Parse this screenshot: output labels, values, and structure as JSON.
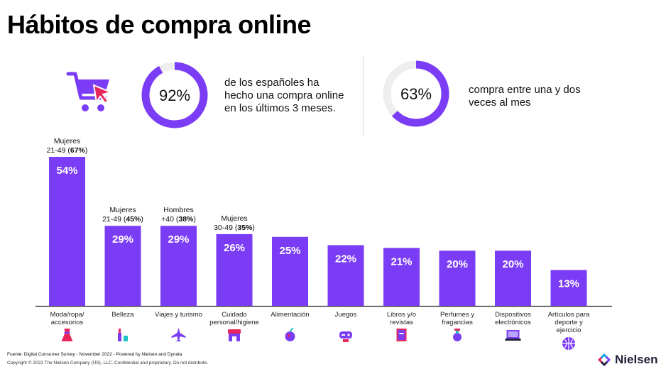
{
  "title": "Hábitos de compra online",
  "stats": [
    {
      "percent": 0.92,
      "label": "92%",
      "line1": "de los españoles ha",
      "line2": "hecho una compra online",
      "line3": "en los últimos 3 meses."
    },
    {
      "percent": 0.63,
      "label": "63%",
      "line1": "compra entre una y dos",
      "line2": "veces al mes",
      "line3": ""
    }
  ],
  "colors": {
    "bar": "#7b3cf5",
    "ring_bg": "#eeeeee",
    "cart_accent": "#e8265e"
  },
  "chart_data": {
    "type": "bar",
    "ylim": [
      0,
      60
    ],
    "categories": [
      {
        "line1": "Moda/ropa/",
        "line2": "accesorios",
        "line3": "",
        "icon": "dress-icon"
      },
      {
        "line1": "Belleza",
        "line2": "",
        "line3": "",
        "icon": "cosmetics-icon"
      },
      {
        "line1": "Viajes y turismo",
        "line2": "",
        "line3": "",
        "icon": "airplane-icon"
      },
      {
        "line1": "Cuidado",
        "line2": "personal/higiene",
        "line3": "",
        "icon": "store-icon"
      },
      {
        "line1": "Alimentación",
        "line2": "",
        "line3": "",
        "icon": "food-icon"
      },
      {
        "line1": "Juegos",
        "line2": "",
        "line3": "",
        "icon": "gamepad-icon"
      },
      {
        "line1": "Libros y/o",
        "line2": "revistas",
        "line3": "",
        "icon": "book-icon"
      },
      {
        "line1": "Perfumes y",
        "line2": "fragancias",
        "line3": "",
        "icon": "perfume-icon"
      },
      {
        "line1": "Dispositivos",
        "line2": "electrónicos",
        "line3": "",
        "icon": "laptop-icon"
      },
      {
        "line1": "Artículos para",
        "line2": "deporte y",
        "line3": "ejercicio",
        "icon": "ball-icon"
      }
    ],
    "values": [
      54,
      29,
      29,
      26,
      25,
      22,
      21,
      20,
      20,
      13
    ],
    "value_labels": [
      "54%",
      "29%",
      "29%",
      "26%",
      "25%",
      "22%",
      "21%",
      "20%",
      "20%",
      "13%"
    ],
    "annotations": [
      {
        "index": 0,
        "line1": "Mujeres",
        "line2_pre": "21-49 (",
        "line2_bold": "67%",
        "line2_post": ")"
      },
      {
        "index": 1,
        "line1": "Mujeres",
        "line2_pre": "21-49 (",
        "line2_bold": "45%",
        "line2_post": ")"
      },
      {
        "index": 2,
        "line1": "Hombres",
        "line2_pre": "+40 (",
        "line2_bold": "38%",
        "line2_post": ")"
      },
      {
        "index": 3,
        "line1": "Mujeres",
        "line2_pre": "30-49 (",
        "line2_bold": "35%",
        "line2_post": ")"
      }
    ]
  },
  "footer": {
    "source": "Fuente: Digital Consumer Survey - November 2022 - Powered by Nielsen and Dynata",
    "copyright": "Copyright © 2022 The Nielsen Company (US), LLC. Confidential and proprietary. Do not distribute."
  },
  "brand": "Nielsen"
}
